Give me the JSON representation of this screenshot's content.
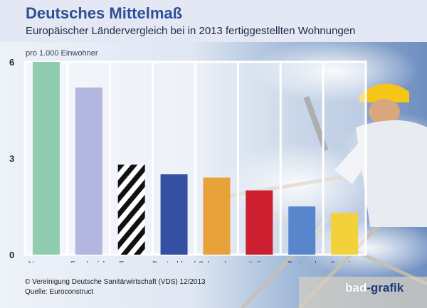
{
  "title": "Deutsches Mittelmaß",
  "subtitle": "Europäischer Ländervergleich bei in 2013 fertiggestellten Wohnungen",
  "chart_data": {
    "type": "bar",
    "unit_label": "pro 1.000 Einwohner",
    "categories": [
      "Norwegen",
      "Frankreich",
      "Europa insgesamt",
      "Deutschland",
      "Schweden",
      "Italien",
      "Portugal",
      "Spanien"
    ],
    "values": [
      6.0,
      5.2,
      2.8,
      2.5,
      2.4,
      2.0,
      1.5,
      1.3
    ],
    "colors": [
      "#90cdb0",
      "#b3b6de",
      "hatched",
      "#3550a3",
      "#e8a23a",
      "#cc1f2f",
      "#5886cc",
      "#f2d13a"
    ],
    "yticks": [
      "0",
      "3",
      "6"
    ],
    "ylim": [
      0,
      6
    ],
    "grid": false,
    "legend": "none"
  },
  "footer": {
    "source_line1": "© Vereinigung Deutsche Sanitärwirtschaft (VDS)  12/2013",
    "source_line2": "Quelle: Euroconstruct"
  },
  "logo": {
    "part_a": "bad",
    "part_b": "-grafik"
  }
}
